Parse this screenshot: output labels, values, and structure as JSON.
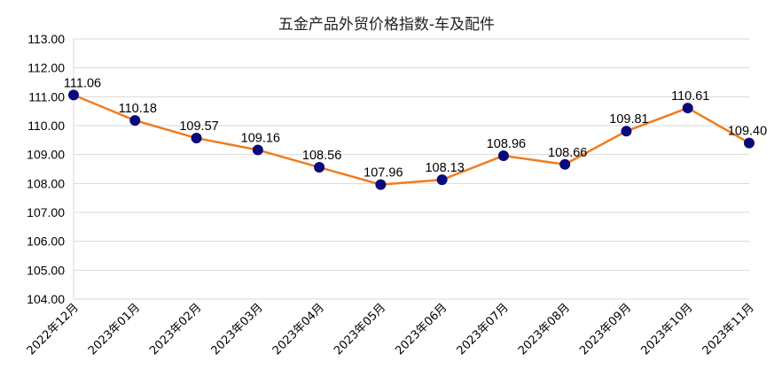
{
  "chart_data": {
    "type": "line",
    "title": "五金产品外贸价格指数-车及配件",
    "xlabel": "",
    "ylabel": "",
    "categories": [
      "2022年12月",
      "2023年01月",
      "2023年02月",
      "2023年03月",
      "2023年04月",
      "2023年05月",
      "2023年06月",
      "2023年07月",
      "2023年08月",
      "2023年09月",
      "2023年10月",
      "2023年11月"
    ],
    "series": [
      {
        "values": [
          111.06,
          110.18,
          109.57,
          109.16,
          108.56,
          107.96,
          108.13,
          108.96,
          108.66,
          109.81,
          110.61,
          109.4
        ],
        "labels": [
          "111.06",
          "110.18",
          "109.57",
          "109.16",
          "108.56",
          "107.96",
          "108.13",
          "108.96",
          "108.66",
          "109.81",
          "110.61",
          "109.40"
        ]
      }
    ],
    "ylim": [
      104,
      113
    ],
    "yticks": [
      "104.00",
      "105.00",
      "106.00",
      "107.00",
      "108.00",
      "109.00",
      "110.00",
      "111.00",
      "112.00",
      "113.00"
    ],
    "grid": true,
    "legend": "none",
    "line_color": "#f07c1e",
    "marker_color": "#0a0a7a",
    "grid_color": "#d9d9d9"
  }
}
